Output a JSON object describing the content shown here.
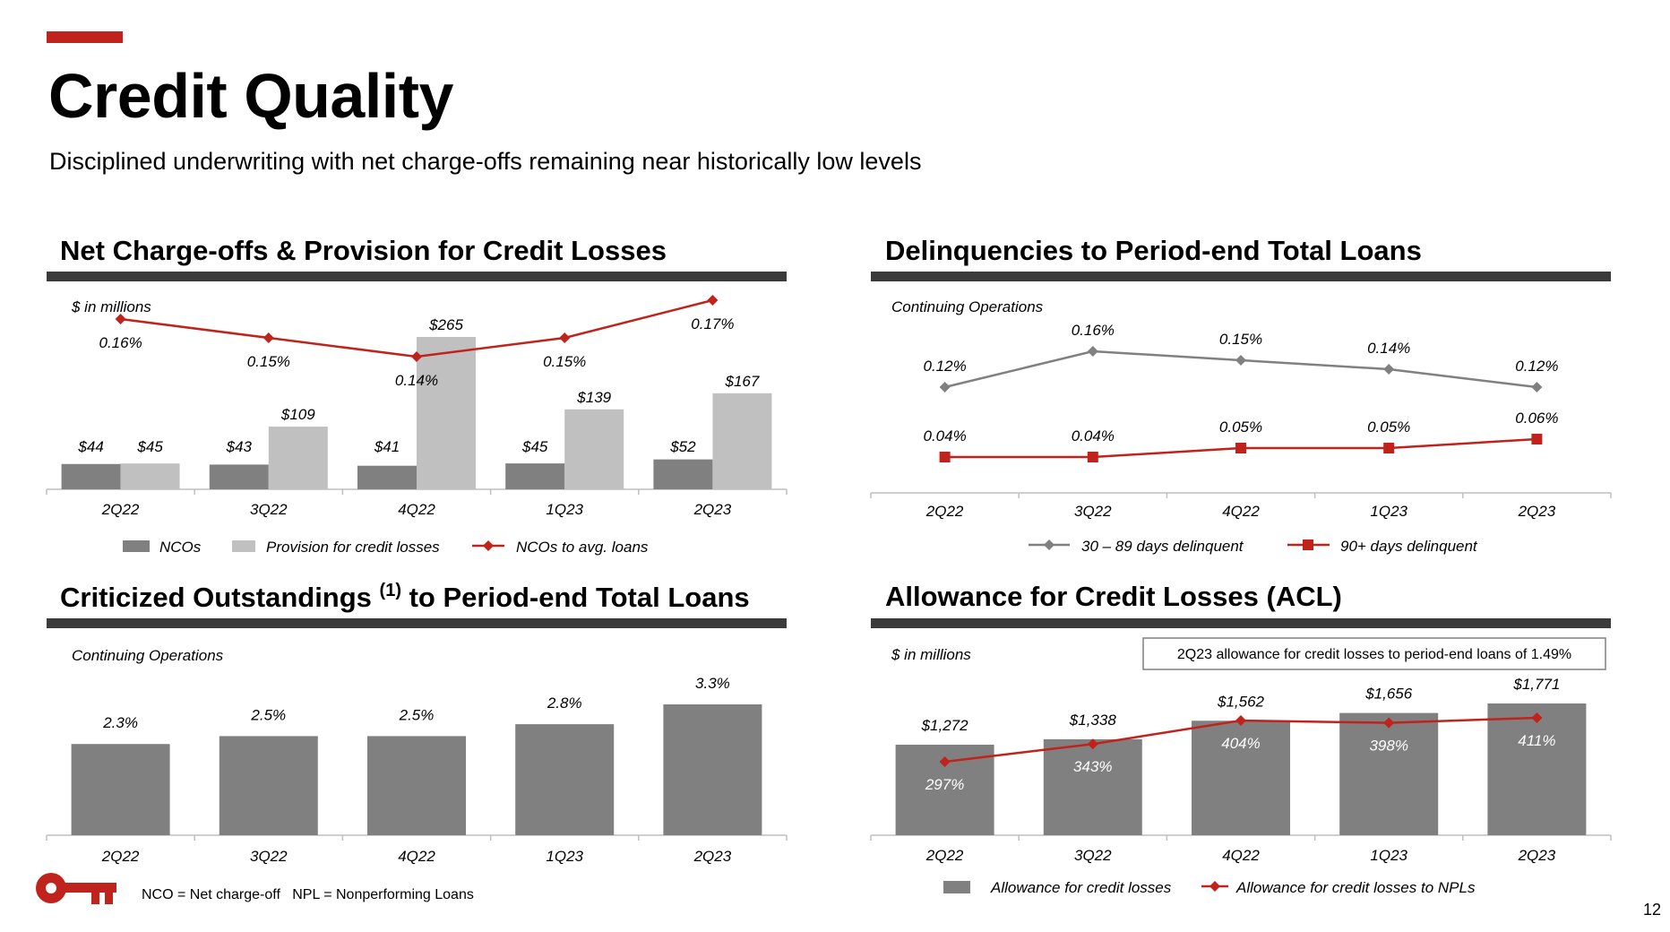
{
  "header": {
    "title": "Credit Quality",
    "subtitle": "Disciplined underwriting with net charge-offs remaining near historically low levels"
  },
  "colors": {
    "accent_red": "#c0221c",
    "dark_gray": "#808080",
    "light_gray": "#c0c0c0",
    "rule": "#3b3b3b"
  },
  "panels": {
    "nco": {
      "title": "Net Charge-offs & Provision for Credit Losses",
      "units_note": "$ in millions"
    },
    "delinq": {
      "title": "Delinquencies to Period-end Total Loans",
      "units_note": "Continuing Operations"
    },
    "crit": {
      "title_main": "Criticized Outstandings ",
      "title_sup": "(1)",
      "title_tail": " to Period-end Total Loans",
      "units_note": "Continuing Operations"
    },
    "acl": {
      "title": "Allowance for Credit Losses (ACL)",
      "units_note": "$ in millions",
      "callout": "2Q23 allowance for credit losses to period-end loans of 1.49%"
    }
  },
  "chart_data": [
    {
      "id": "nco",
      "type": "bar",
      "title": "Net Charge-offs & Provision for Credit Losses",
      "ylabel": "$ in millions",
      "categories": [
        "2Q22",
        "3Q22",
        "4Q22",
        "1Q23",
        "2Q23"
      ],
      "series": [
        {
          "name": "NCOs",
          "kind": "bar",
          "color": "#808080",
          "values": [
            44,
            43,
            41,
            45,
            52
          ],
          "labels": [
            "$44",
            "$43",
            "$41",
            "$45",
            "$52"
          ]
        },
        {
          "name": "Provision for credit losses",
          "kind": "bar",
          "color": "#c0c0c0",
          "values": [
            45,
            109,
            265,
            139,
            167
          ],
          "labels": [
            "$45",
            "$109",
            "$265",
            "$139",
            "$167"
          ]
        },
        {
          "name": "NCOs to avg. loans",
          "kind": "line",
          "marker": "diamond",
          "color": "#c0221c",
          "values": [
            0.16,
            0.15,
            0.14,
            0.15,
            0.17
          ],
          "labels": [
            "0.16%",
            "0.15%",
            "0.14%",
            "0.15%",
            "0.17%"
          ]
        }
      ]
    },
    {
      "id": "delinq",
      "type": "line",
      "title": "Delinquencies to Period-end Total Loans",
      "categories": [
        "2Q22",
        "3Q22",
        "4Q22",
        "1Q23",
        "2Q23"
      ],
      "series": [
        {
          "name": "30 – 89 days delinquent",
          "marker": "diamond",
          "color": "#808080",
          "values": [
            0.12,
            0.16,
            0.15,
            0.14,
            0.12
          ],
          "labels": [
            "0.12%",
            "0.16%",
            "0.15%",
            "0.14%",
            "0.12%"
          ]
        },
        {
          "name": "90+ days delinquent",
          "marker": "square",
          "color": "#c0221c",
          "values": [
            0.04,
            0.04,
            0.05,
            0.05,
            0.06
          ],
          "labels": [
            "0.04%",
            "0.04%",
            "0.05%",
            "0.05%",
            "0.06%"
          ]
        }
      ]
    },
    {
      "id": "crit",
      "type": "bar",
      "title": "Criticized Outstandings (1) to Period-end Total Loans",
      "categories": [
        "2Q22",
        "3Q22",
        "4Q22",
        "1Q23",
        "2Q23"
      ],
      "series": [
        {
          "kind": "bar",
          "color": "#808080",
          "values": [
            2.3,
            2.5,
            2.5,
            2.8,
            3.3
          ],
          "labels": [
            "2.3%",
            "2.5%",
            "2.5%",
            "2.8%",
            "3.3%"
          ]
        }
      ]
    },
    {
      "id": "acl",
      "type": "bar",
      "title": "Allowance for Credit Losses (ACL)",
      "ylabel": "$ in millions",
      "categories": [
        "2Q22",
        "3Q22",
        "4Q22",
        "1Q23",
        "2Q23"
      ],
      "series": [
        {
          "name": "Allowance for credit losses",
          "kind": "bar",
          "color": "#808080",
          "values": [
            1272,
            1338,
            1562,
            1656,
            1771
          ],
          "labels": [
            "$1,272",
            "$1,338",
            "$1,562",
            "$1,656",
            "$1,771"
          ]
        },
        {
          "name": "Allowance for credit losses to NPLs",
          "kind": "line",
          "marker": "diamond",
          "color": "#c0221c",
          "values": [
            297,
            343,
            404,
            398,
            411
          ],
          "labels": [
            "297%",
            "343%",
            "404%",
            "398%",
            "411%"
          ]
        }
      ]
    }
  ],
  "footer": {
    "footnote": "NCO = Net charge-off   NPL = Nonperforming Loans",
    "page_number": "12"
  }
}
